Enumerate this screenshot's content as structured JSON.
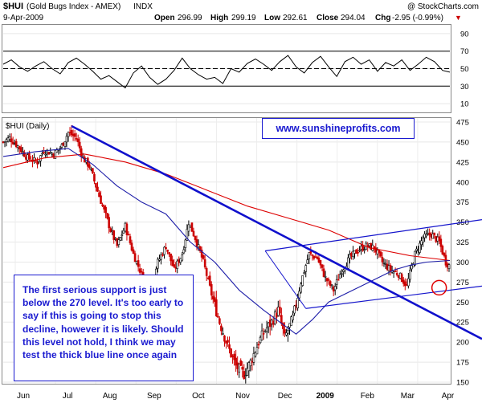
{
  "header": {
    "symbol": "$HUI",
    "name": "(Gold Bugs Index - AMEX)",
    "exchange": "INDX",
    "watermark": "@ StockCharts.com",
    "date": "9-Apr-2009",
    "open_label": "Open",
    "open": "296.99",
    "high_label": "High",
    "high": "299.19",
    "low_label": "Low",
    "low": "292.61",
    "close_label": "Close",
    "close": "294.04",
    "chg_label": "Chg",
    "chg": "-2.95 (-0.99%)",
    "chg_arrow": "▼"
  },
  "main_label": "$HUI (Daily)",
  "website": "www.sunshineprofits.com",
  "note": "The first serious support is just below the 270 level. It's too early to say if this is going to stop this decline, however it is likely. Should this level not hold, I think we may test the thick blue line once again",
  "colors": {
    "candle_up": "#000000",
    "candle_down": "#cc0000",
    "ma_red": "#dd0000",
    "ma_blue": "#1c1ca8",
    "trend_thick": "#1010cc",
    "channel": "#1515cc",
    "circle": "#e00000",
    "rsi_line": "#000000",
    "rsi_band": "#000000"
  },
  "chart_data": [
    {
      "type": "line",
      "panel": "rsi",
      "y_ticks": [
        "90",
        "70",
        "50",
        "30",
        "10"
      ],
      "ylim": [
        0,
        100
      ],
      "reference_lines": [
        70,
        50,
        30
      ],
      "x": [
        0,
        10,
        20,
        30,
        40,
        50,
        60,
        70,
        80,
        90,
        100,
        110,
        120,
        130,
        140,
        150,
        160,
        170,
        180,
        190,
        200,
        210,
        220,
        230,
        240,
        250,
        260,
        270,
        280,
        290,
        300,
        310,
        320,
        330,
        340,
        350,
        360,
        370,
        380,
        390,
        400,
        410,
        420,
        430,
        440,
        450,
        460,
        470,
        480,
        490,
        500,
        510,
        520,
        530,
        540,
        549
      ],
      "values": [
        55,
        60,
        52,
        47,
        53,
        58,
        50,
        44,
        57,
        62,
        55,
        47,
        38,
        42,
        35,
        28,
        45,
        53,
        40,
        32,
        38,
        48,
        62,
        50,
        43,
        38,
        40,
        33,
        50,
        46,
        56,
        61,
        55,
        48,
        58,
        65,
        52,
        45,
        57,
        64,
        52,
        41,
        58,
        63,
        55,
        60,
        47,
        57,
        53,
        60,
        48,
        55,
        63,
        58,
        48,
        46
      ]
    },
    {
      "type": "candlestick",
      "panel": "price",
      "title": "$HUI (Daily)",
      "ylim": [
        148,
        480
      ],
      "y_ticks": [
        "475",
        "450",
        "425",
        "400",
        "375",
        "350",
        "325",
        "300",
        "275",
        "250",
        "225",
        "200",
        "175",
        "150"
      ],
      "x_ticks": [
        "Jun",
        "Jul",
        "Aug",
        "Sep",
        "Oct",
        "Nov",
        "Dec",
        "2009",
        "Feb",
        "Mar",
        "Apr"
      ],
      "close_path": {
        "x": [
          0,
          8,
          18,
          30,
          42,
          50,
          62,
          72,
          80,
          90,
          98,
          106,
          114,
          122,
          132,
          140,
          150,
          160,
          170,
          180,
          190,
          200,
          210,
          220,
          228,
          236,
          246,
          256,
          266,
          276,
          286,
          296,
          304,
          314,
          322,
          330,
          338,
          346,
          356,
          366,
          376,
          386,
          396,
          406,
          416,
          426,
          436,
          446,
          456,
          466,
          476,
          486,
          496,
          506,
          516,
          526,
          536,
          544,
          549
        ],
        "values": [
          450,
          455,
          445,
          430,
          425,
          440,
          435,
          445,
          462,
          455,
          430,
          420,
          395,
          370,
          340,
          320,
          345,
          310,
          285,
          265,
          300,
          320,
          290,
          310,
          350,
          330,
          300,
          260,
          225,
          195,
          170,
          160,
          175,
          200,
          215,
          225,
          240,
          205,
          230,
          275,
          310,
          305,
          280,
          265,
          290,
          305,
          315,
          320,
          318,
          300,
          290,
          285,
          270,
          310,
          330,
          335,
          325,
          300,
          295
        ]
      },
      "moving_averages": [
        {
          "color": "red",
          "x": [
            0,
            50,
            100,
            150,
            200,
            250,
            300,
            350,
            400,
            450,
            500,
            549
          ],
          "values": [
            418,
            430,
            435,
            425,
            410,
            390,
            370,
            355,
            340,
            318,
            308,
            302
          ]
        },
        {
          "color": "blue",
          "x": [
            0,
            40,
            80,
            110,
            140,
            170,
            200,
            230,
            260,
            290,
            320,
            340,
            360,
            380,
            400,
            420,
            440,
            460,
            480,
            500,
            520,
            549
          ],
          "values": [
            432,
            438,
            442,
            422,
            395,
            375,
            360,
            325,
            300,
            265,
            240,
            225,
            210,
            228,
            250,
            260,
            270,
            280,
            290,
            296,
            300,
            302
          ]
        }
      ],
      "annotations": {
        "thick_trendline": {
          "x": [
            84,
            549
          ],
          "values": [
            470,
            218
          ]
        },
        "channel_upper": {
          "x": [
            322,
            549
          ],
          "values": [
            314,
            351
          ]
        },
        "channel_lower": {
          "x": [
            372,
            549
          ],
          "values": [
            242,
            268
          ]
        },
        "support_circle": {
          "x": 521,
          "value": 268
        }
      }
    }
  ]
}
